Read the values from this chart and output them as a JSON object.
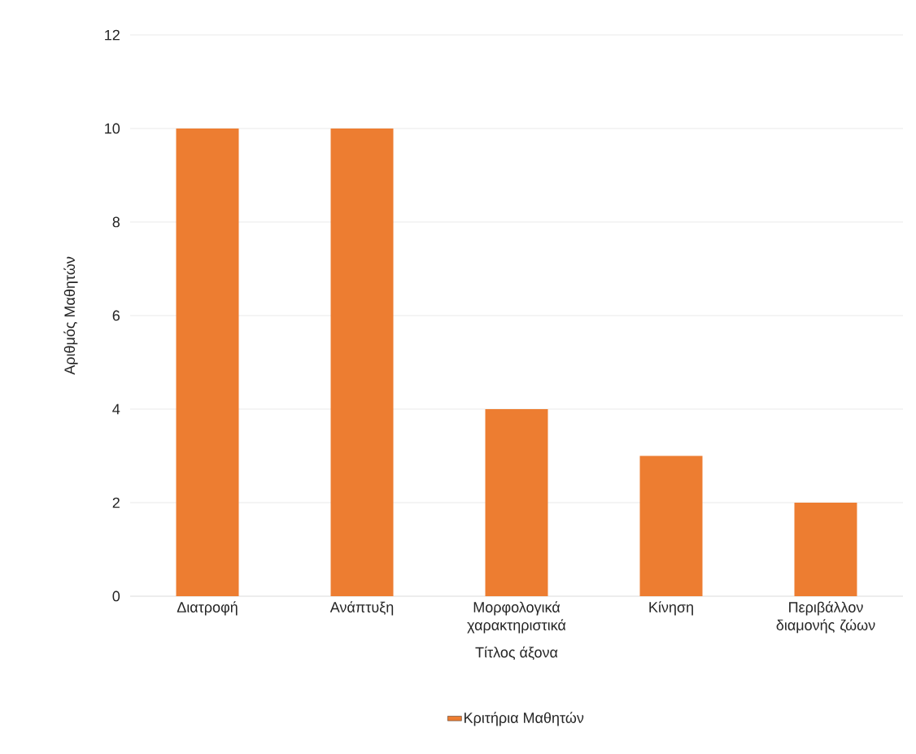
{
  "chart_data": {
    "type": "bar",
    "xlabel": "Τίτλος άξονα",
    "ylabel": "Αριθμός Μαθητών",
    "categories": [
      "Διατροφή",
      "Ανάπτυξη",
      "Μορφολογικά χαρακτηριστικά",
      "Κίνηση",
      "Περιβάλλον διαμονής ζώων"
    ],
    "series": [
      {
        "name": "Κριτήρια Μαθητών",
        "color": "#ed7d31",
        "values": [
          10,
          10,
          4,
          3,
          2
        ]
      }
    ],
    "ylim": [
      0,
      12
    ],
    "yticks": [
      0,
      2,
      4,
      6,
      8,
      10,
      12
    ],
    "grid": "y",
    "legend": "bottom"
  }
}
